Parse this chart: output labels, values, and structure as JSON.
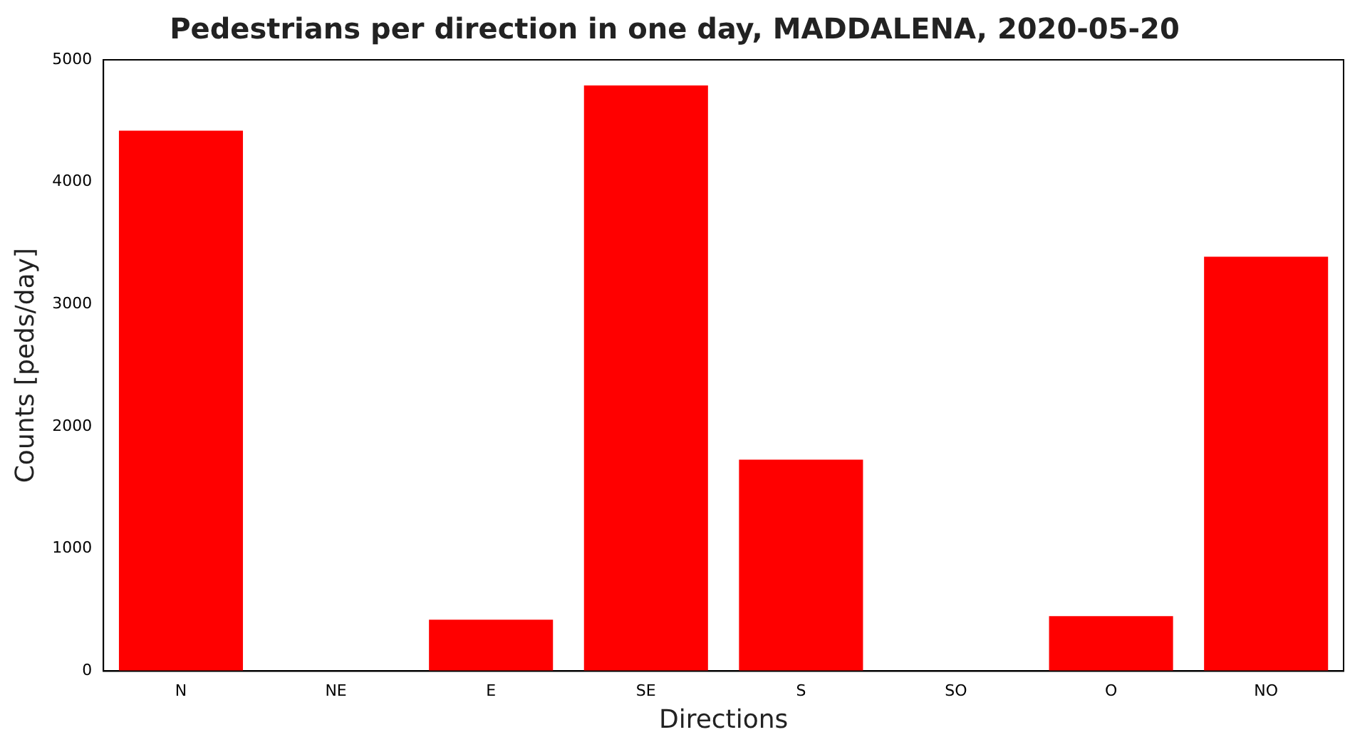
{
  "chart_data": {
    "type": "bar",
    "title": "Pedestrians per direction in one day, MADDALENA, 2020-05-20",
    "xlabel": "Directions",
    "ylabel": "Counts [peds/day]",
    "categories": [
      "N",
      "NE",
      "E",
      "SE",
      "S",
      "SO",
      "O",
      "NO"
    ],
    "values": [
      4420,
      0,
      420,
      4790,
      1730,
      0,
      450,
      3390
    ],
    "color": "#ff0000",
    "ylim": [
      0,
      5000
    ],
    "yticks": [
      0,
      1000,
      2000,
      3000,
      4000,
      5000
    ],
    "grid": false,
    "legend": false
  }
}
